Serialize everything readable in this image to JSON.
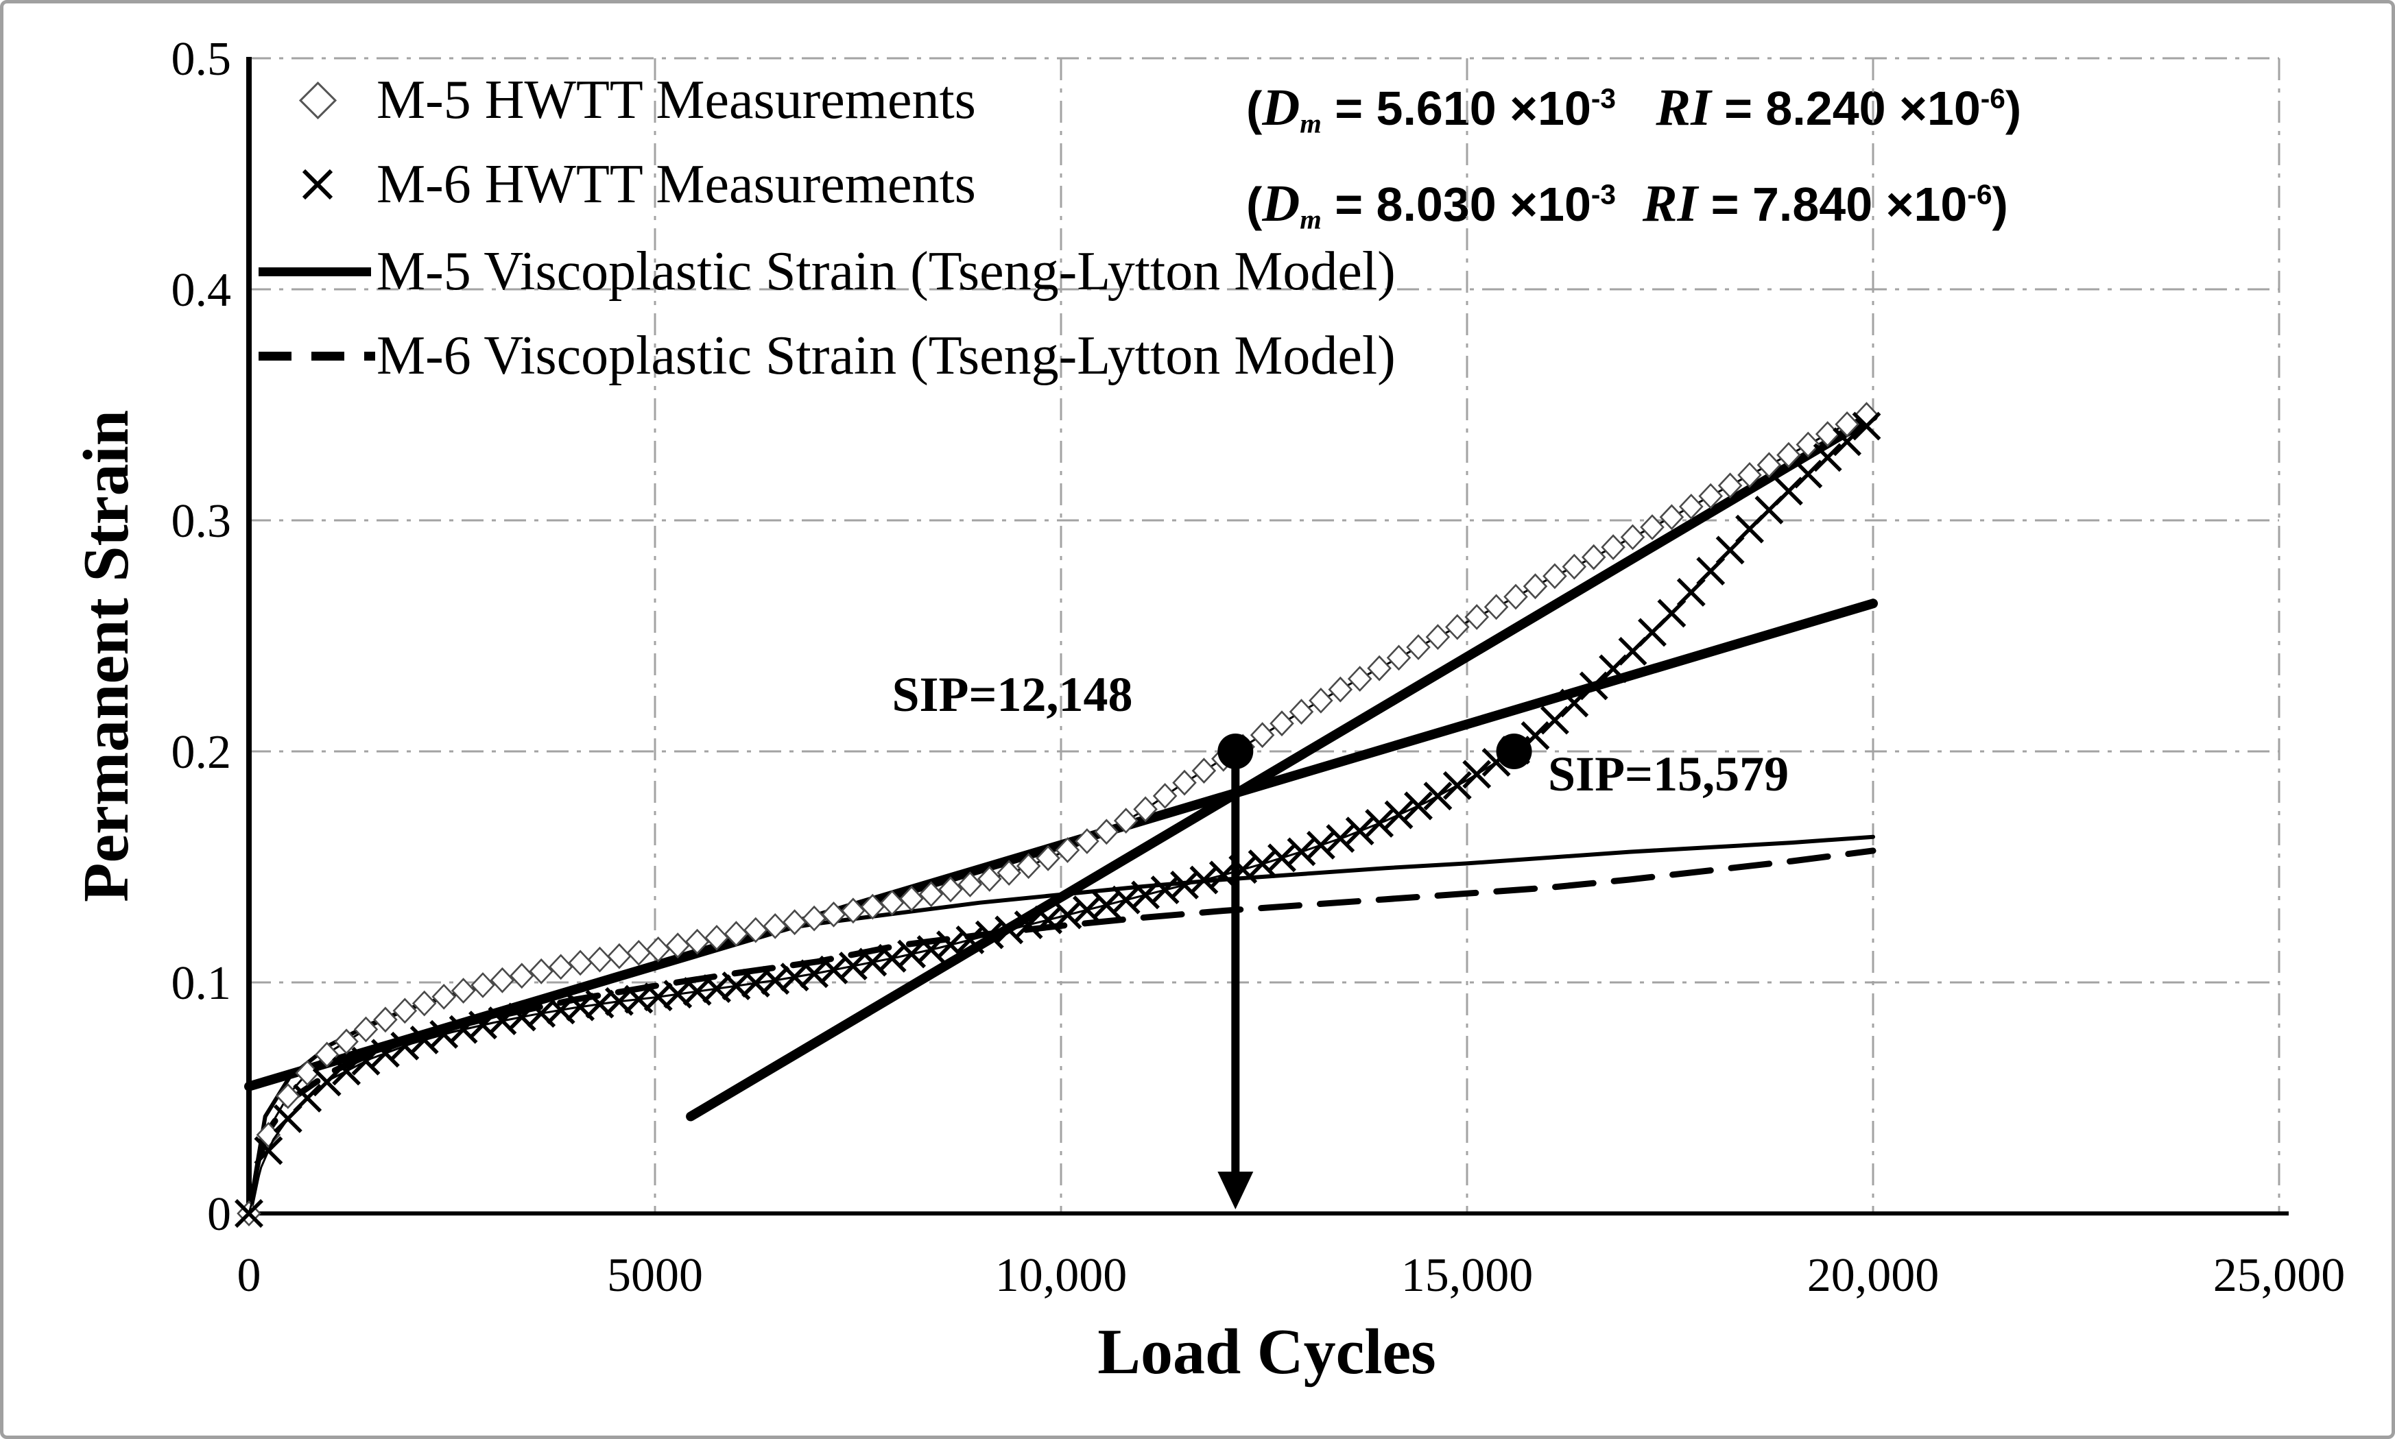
{
  "figure": {
    "background": "#ffffff",
    "border_color": "#a0a0a0"
  },
  "legend": {
    "items": [
      {
        "marker": "open-diamond-icon",
        "label": "M-5 HWTT Measurements"
      },
      {
        "marker": "x-cross-icon",
        "label": "M-6 HWTT Measurements"
      },
      {
        "marker": "solid-line-icon",
        "label": "M-5 Viscoplastic Strain (Tseng-Lytton Model)"
      },
      {
        "marker": "dashed-line-icon",
        "label": "M-6 Viscoplastic Strain (Tseng-Lytton Model)"
      }
    ]
  },
  "annotations": {
    "param_lines": [
      {
        "name": "m5-parameters",
        "parts": [
          {
            "t": "(",
            "s": "plain"
          },
          {
            "t": "D",
            "s": "italic"
          },
          {
            "t": "m",
            "s": "sub"
          },
          {
            "t": " = 5.610 ×10",
            "s": "plain"
          },
          {
            "t": "-3",
            "s": "sup"
          },
          {
            "t": "   ",
            "s": "plain"
          },
          {
            "t": "RI",
            "s": "italic"
          },
          {
            "t": " = 8.240 ×10",
            "s": "plain"
          },
          {
            "t": "-6",
            "s": "sup"
          },
          {
            "t": ")",
            "s": "plain"
          }
        ]
      },
      {
        "name": "m6-parameters",
        "parts": [
          {
            "t": "(",
            "s": "plain"
          },
          {
            "t": "D",
            "s": "italic"
          },
          {
            "t": "m",
            "s": "sub"
          },
          {
            "t": " = 8.030 ×10",
            "s": "plain"
          },
          {
            "t": "-3",
            "s": "sup"
          },
          {
            "t": "  ",
            "s": "plain"
          },
          {
            "t": "RI",
            "s": "italic"
          },
          {
            "t": " = 7.840 ×10",
            "s": "plain"
          },
          {
            "t": "-6",
            "s": "sup"
          },
          {
            "t": ")",
            "s": "plain"
          }
        ]
      }
    ]
  },
  "chart_data": {
    "type": "line",
    "title": "",
    "xlabel": "Load Cycles",
    "ylabel": "Permanent Strain",
    "xlim": [
      0,
      25000
    ],
    "ylim": [
      0,
      0.5
    ],
    "xticks": [
      0,
      5000,
      10000,
      15000,
      20000,
      25000
    ],
    "xtick_labels": [
      "0",
      "5000",
      "10,000",
      "15,000",
      "20,000",
      "25,000"
    ],
    "yticks": [
      0,
      0.1,
      0.2,
      0.3,
      0.4,
      0.5
    ],
    "ytick_labels": [
      "0",
      "0.1",
      "0.2",
      "0.3",
      "0.4",
      "0.5"
    ],
    "grid": true,
    "grid_color": "#a3a3a3",
    "legend_position": "inside-top-left",
    "series": [
      {
        "name": "M-5 HWTT Measurements",
        "kind": "scatter",
        "marker": "open-diamond",
        "marker_step": 240,
        "color": "#4a4a4a",
        "points": [
          [
            0,
            0
          ],
          [
            150,
            0.025
          ],
          [
            300,
            0.04
          ],
          [
            500,
            0.052
          ],
          [
            750,
            0.062
          ],
          [
            1000,
            0.07
          ],
          [
            1500,
            0.081
          ],
          [
            2000,
            0.089
          ],
          [
            2500,
            0.095
          ],
          [
            3000,
            0.1
          ],
          [
            3500,
            0.104
          ],
          [
            4000,
            0.108
          ],
          [
            4500,
            0.111
          ],
          [
            5000,
            0.114
          ],
          [
            5500,
            0.1175
          ],
          [
            6000,
            0.121
          ],
          [
            6500,
            0.1245
          ],
          [
            7000,
            0.128
          ],
          [
            7500,
            0.1315
          ],
          [
            8000,
            0.135
          ],
          [
            8500,
            0.139
          ],
          [
            9000,
            0.1435
          ],
          [
            9500,
            0.149
          ],
          [
            10000,
            0.156
          ],
          [
            10500,
            0.164
          ],
          [
            11000,
            0.174
          ],
          [
            11500,
            0.186
          ],
          [
            12148,
            0.2
          ],
          [
            12500,
            0.2075
          ],
          [
            13000,
            0.218
          ],
          [
            13500,
            0.228
          ],
          [
            14000,
            0.2375
          ],
          [
            14500,
            0.247
          ],
          [
            15000,
            0.256
          ],
          [
            15500,
            0.265
          ],
          [
            16000,
            0.2745
          ],
          [
            16500,
            0.283
          ],
          [
            17000,
            0.292
          ],
          [
            17500,
            0.301
          ],
          [
            18000,
            0.3105
          ],
          [
            18500,
            0.32
          ],
          [
            19000,
            0.329
          ],
          [
            19500,
            0.3385
          ],
          [
            20000,
            0.347
          ]
        ]
      },
      {
        "name": "M-6 HWTT Measurements",
        "kind": "scatter",
        "marker": "x",
        "marker_step": 240,
        "color": "#000000",
        "points": [
          [
            0,
            0
          ],
          [
            150,
            0.02
          ],
          [
            300,
            0.032
          ],
          [
            500,
            0.042
          ],
          [
            750,
            0.051
          ],
          [
            1000,
            0.058
          ],
          [
            1500,
            0.067
          ],
          [
            2000,
            0.0735
          ],
          [
            2500,
            0.0785
          ],
          [
            3000,
            0.0825
          ],
          [
            3500,
            0.086
          ],
          [
            4000,
            0.089
          ],
          [
            4500,
            0.0915
          ],
          [
            5000,
            0.0935
          ],
          [
            5500,
            0.096
          ],
          [
            6000,
            0.0985
          ],
          [
            6500,
            0.101
          ],
          [
            7000,
            0.104
          ],
          [
            7500,
            0.1075
          ],
          [
            8000,
            0.111
          ],
          [
            8500,
            0.115
          ],
          [
            9000,
            0.1195
          ],
          [
            9500,
            0.124
          ],
          [
            10000,
            0.1285
          ],
          [
            10500,
            0.133
          ],
          [
            11000,
            0.1375
          ],
          [
            11500,
            0.142
          ],
          [
            12000,
            0.1465
          ],
          [
            12500,
            0.1515
          ],
          [
            13000,
            0.157
          ],
          [
            13500,
            0.163
          ],
          [
            14000,
            0.17
          ],
          [
            14500,
            0.178
          ],
          [
            15000,
            0.1875
          ],
          [
            15579,
            0.2
          ],
          [
            16000,
            0.211
          ],
          [
            16500,
            0.2265
          ],
          [
            17000,
            0.242
          ],
          [
            17500,
            0.259
          ],
          [
            18000,
            0.278
          ],
          [
            18500,
            0.297
          ],
          [
            19000,
            0.314
          ],
          [
            19500,
            0.329
          ],
          [
            20000,
            0.343
          ]
        ]
      },
      {
        "name": "M-5 Viscoplastic Strain (Tseng-Lytton Model)",
        "kind": "line",
        "style": "solid",
        "width": 6,
        "color": "#000000",
        "points": [
          [
            0,
            0
          ],
          [
            200,
            0.042
          ],
          [
            500,
            0.059
          ],
          [
            1000,
            0.073
          ],
          [
            1500,
            0.082
          ],
          [
            2000,
            0.089
          ],
          [
            2500,
            0.0945
          ],
          [
            3000,
            0.0995
          ],
          [
            4000,
            0.1075
          ],
          [
            5000,
            0.114
          ],
          [
            6000,
            0.12
          ],
          [
            7000,
            0.1255
          ],
          [
            8000,
            0.13
          ],
          [
            9000,
            0.1345
          ],
          [
            10000,
            0.138
          ],
          [
            11000,
            0.1415
          ],
          [
            12000,
            0.1445
          ],
          [
            13000,
            0.147
          ],
          [
            14000,
            0.1495
          ],
          [
            15000,
            0.1515
          ],
          [
            16000,
            0.154
          ],
          [
            17000,
            0.1565
          ],
          [
            18000,
            0.1585
          ],
          [
            19000,
            0.1605
          ],
          [
            20000,
            0.163
          ]
        ]
      },
      {
        "name": "M-6 Viscoplastic Strain (Tseng-Lytton Model)",
        "kind": "line",
        "style": "dashed",
        "width": 9,
        "color": "#000000",
        "points": [
          [
            0,
            0
          ],
          [
            200,
            0.034
          ],
          [
            500,
            0.049
          ],
          [
            1000,
            0.061
          ],
          [
            1500,
            0.069
          ],
          [
            2000,
            0.0755
          ],
          [
            2500,
            0.0805
          ],
          [
            3000,
            0.085
          ],
          [
            4000,
            0.0925
          ],
          [
            5000,
            0.0985
          ],
          [
            6000,
            0.104
          ],
          [
            7000,
            0.109
          ],
          [
            8000,
            0.116
          ],
          [
            9000,
            0.1205
          ],
          [
            10000,
            0.1245
          ],
          [
            11000,
            0.128
          ],
          [
            12000,
            0.131
          ],
          [
            13000,
            0.1335
          ],
          [
            14000,
            0.136
          ],
          [
            15000,
            0.1385
          ],
          [
            16000,
            0.141
          ],
          [
            17000,
            0.1445
          ],
          [
            18000,
            0.1485
          ],
          [
            19000,
            0.1525
          ],
          [
            20000,
            0.157
          ]
        ]
      },
      {
        "name": "M-5 secondary stage tangent line",
        "kind": "line",
        "style": "solid",
        "width": 14,
        "color": "#000000",
        "points": [
          [
            0,
            0.055
          ],
          [
            20000,
            0.264
          ]
        ]
      },
      {
        "name": "M-5 tertiary stage tangent line",
        "kind": "line",
        "style": "solid",
        "width": 14,
        "color": "#000000",
        "points": [
          [
            5440,
            0.042
          ],
          [
            20000,
            0.345
          ]
        ]
      }
    ],
    "sip_points": [
      {
        "x": 12148,
        "y": 0.2,
        "label": "SIP=12,148"
      },
      {
        "x": 15579,
        "y": 0.2,
        "label": "SIP=15,579"
      }
    ],
    "sip_arrow": {
      "x": 12148,
      "from_y": 0.2,
      "to_y": 0
    }
  }
}
